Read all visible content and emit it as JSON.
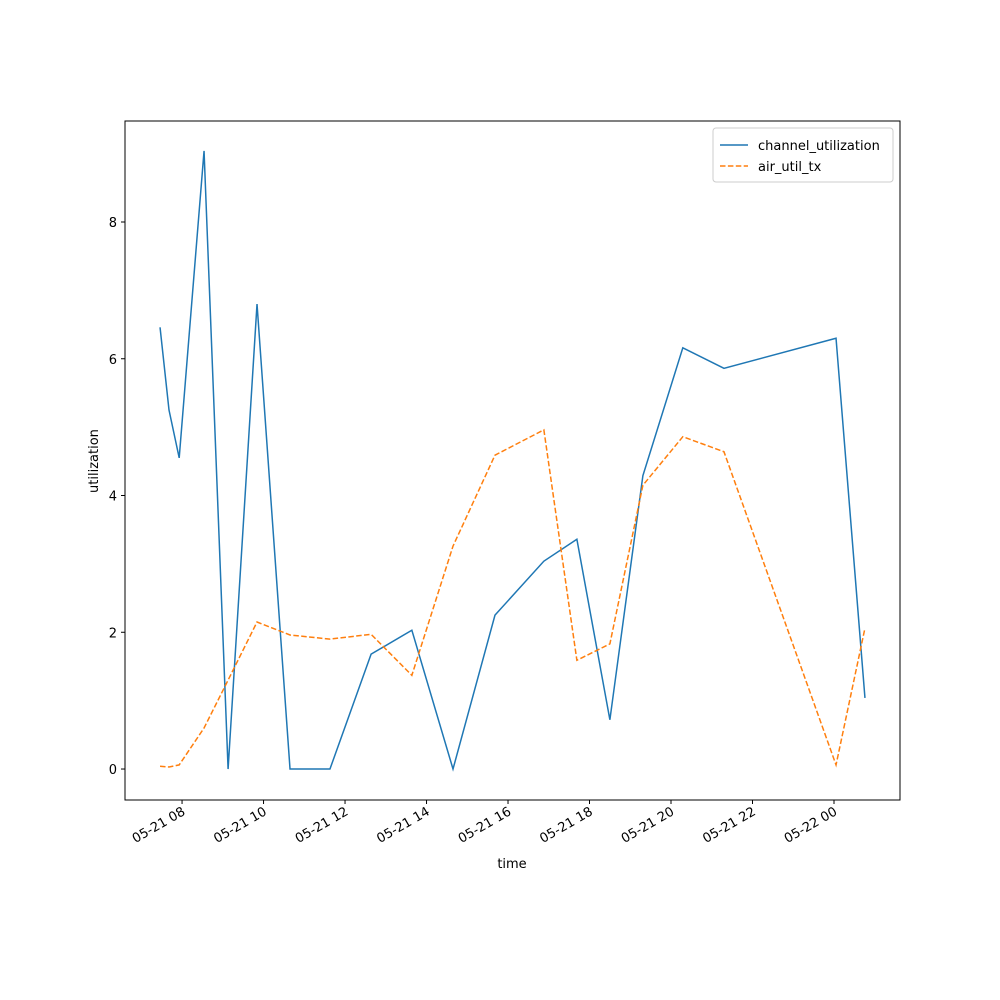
{
  "chart_data": {
    "type": "line",
    "x_label": "time",
    "y_label": "utilization",
    "x": [
      7.46,
      7.68,
      7.93,
      8.54,
      9.13,
      9.84,
      10.65,
      11.63,
      12.64,
      13.64,
      14.65,
      15.68,
      16.88,
      17.69,
      18.5,
      19.31,
      20.29,
      21.3,
      24.05,
      24.76
    ],
    "series": [
      {
        "name": "channel_utilization",
        "color": "#1f77b4",
        "dash": "solid",
        "values": [
          6.46,
          5.25,
          4.55,
          9.04,
          0,
          6.8,
          0,
          0,
          1.68,
          2.03,
          0,
          2.25,
          3.04,
          3.36,
          0.72,
          4.29,
          6.16,
          5.86,
          6.3,
          1.04
        ]
      },
      {
        "name": "air_util_tx",
        "color": "#ff7f0e",
        "dash": "dashed",
        "values": [
          0.04,
          0.03,
          0.06,
          0.6,
          1.3,
          2.15,
          1.96,
          1.9,
          1.97,
          1.37,
          3.26,
          4.59,
          4.96,
          1.59,
          1.83,
          4.15,
          4.86,
          4.64,
          0.06,
          2.06
        ]
      }
    ],
    "xlim": [
      6.6,
      25.62
    ],
    "ylim": [
      -0.453,
      9.477
    ],
    "xticks": [
      {
        "value": 8,
        "label": "05-21 08"
      },
      {
        "value": 10,
        "label": "05-21 10"
      },
      {
        "value": 12,
        "label": "05-21 12"
      },
      {
        "value": 14,
        "label": "05-21 14"
      },
      {
        "value": 16,
        "label": "05-21 16"
      },
      {
        "value": 18,
        "label": "05-21 18"
      },
      {
        "value": 20,
        "label": "05-21 20"
      },
      {
        "value": 22,
        "label": "05-21 22"
      },
      {
        "value": 24,
        "label": "05-22 00"
      }
    ],
    "yticks": [
      0,
      2,
      4,
      6,
      8
    ],
    "legend": "upper right",
    "grid": false
  }
}
